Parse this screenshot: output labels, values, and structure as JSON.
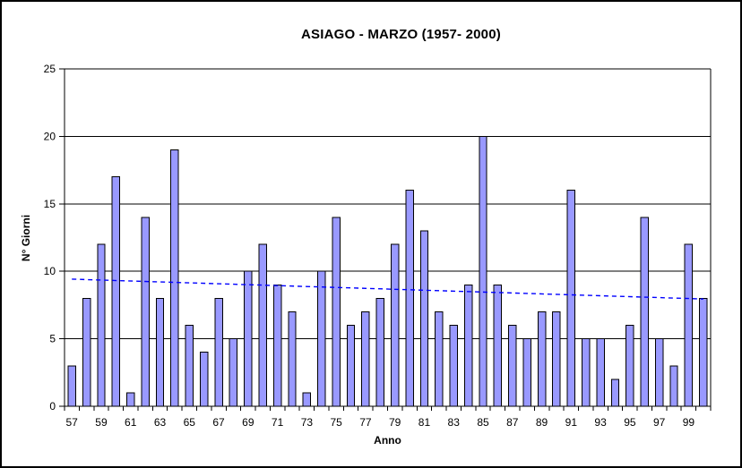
{
  "window": {
    "background": "#FFFFFF",
    "border_color": "#000000"
  },
  "chart_data": {
    "type": "bar",
    "title": "ASIAGO - MARZO (1957- 2000)",
    "xlabel": "Anno",
    "ylabel": "N° Giorni",
    "categories": [
      "57",
      "58",
      "59",
      "60",
      "61",
      "62",
      "63",
      "64",
      "65",
      "66",
      "67",
      "68",
      "69",
      "70",
      "71",
      "72",
      "73",
      "74",
      "75",
      "76",
      "77",
      "78",
      "79",
      "80",
      "81",
      "82",
      "83",
      "84",
      "85",
      "86",
      "87",
      "88",
      "89",
      "90",
      "91",
      "92",
      "93",
      "94",
      "95",
      "96",
      "97",
      "98",
      "99",
      "00"
    ],
    "values": [
      3,
      8,
      12,
      17,
      1,
      14,
      8,
      19,
      6,
      4,
      8,
      5,
      10,
      12,
      9,
      7,
      1,
      10,
      14,
      6,
      7,
      8,
      12,
      16,
      13,
      7,
      6,
      9,
      20,
      9,
      6,
      5,
      7,
      7,
      16,
      5,
      5,
      2,
      6,
      14,
      5,
      3,
      12,
      8
    ],
    "ylim": [
      0,
      25
    ],
    "yticks": [
      0,
      5,
      10,
      15,
      20,
      25
    ],
    "x_label_every": 2,
    "grid": true,
    "legend": "none",
    "plot_background": "#FFFFFF",
    "bar_fill": "#9999FF",
    "bar_border": "#000000",
    "gridline_color": "#000000",
    "axis_color": "#000000",
    "tick_label_color": "#000000",
    "trendline": {
      "style": "dashed",
      "color": "#0000FF",
      "start_value": 9.42,
      "end_value": 7.95
    }
  }
}
